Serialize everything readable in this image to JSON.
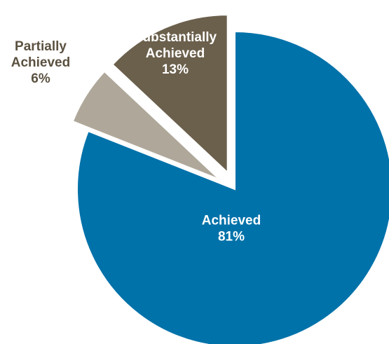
{
  "chart_data": {
    "type": "pie",
    "title": "",
    "slices": [
      {
        "label_lines": [
          "Achieved"
        ],
        "percent_label": "81%",
        "value": 81,
        "color": "#0072aa",
        "label_color": "#ffffff",
        "exploded": false
      },
      {
        "label_lines": [
          "Partially",
          "Achieved"
        ],
        "percent_label": "6%",
        "value": 6,
        "color": "#afa89a",
        "label_color": "#5b5140",
        "exploded": true
      },
      {
        "label_lines": [
          "Substantially",
          "Achieved"
        ],
        "percent_label": "13%",
        "value": 13,
        "color": "#6b604c",
        "label_color": "#ffffff",
        "exploded": true
      }
    ],
    "legend": "none"
  }
}
